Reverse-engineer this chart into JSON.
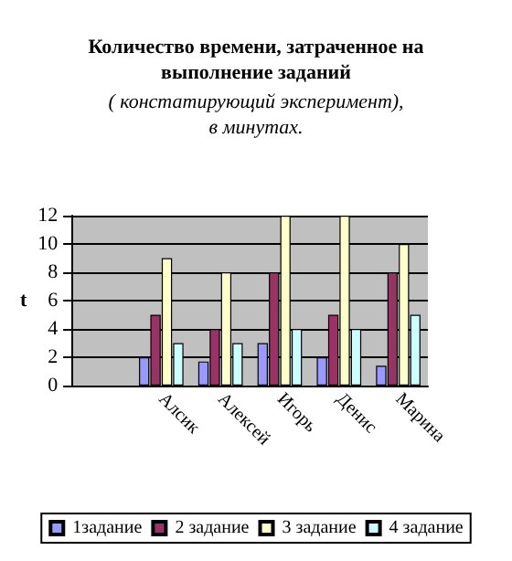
{
  "chart_data": {
    "type": "bar",
    "title": "Количество времени, затраченное на\nвыполнение заданий",
    "subtitle": "( констатирующий эксперимент),\nв минутах.",
    "ylabel": "t",
    "categories": [
      null,
      "Алсик",
      "Алексей",
      "Игорь",
      "Денис",
      "Марина"
    ],
    "series": [
      {
        "name": "1задание",
        "color": "#9999ff",
        "values": [
          0,
          2,
          1.7,
          3,
          2,
          1.4
        ]
      },
      {
        "name": "2 задание",
        "color": "#993366",
        "values": [
          0,
          5,
          4,
          8,
          5,
          8
        ]
      },
      {
        "name": "3 задание",
        "color": "#ffffcc",
        "values": [
          0,
          9,
          8,
          12,
          12,
          10
        ]
      },
      {
        "name": "4 задание",
        "color": "#ccffff",
        "values": [
          0,
          3,
          3,
          4,
          4,
          5
        ]
      }
    ],
    "ylim": [
      0,
      12
    ],
    "yticks": [
      0,
      2,
      4,
      6,
      8,
      10,
      12
    ],
    "grid": "y",
    "legend": "bottom"
  }
}
